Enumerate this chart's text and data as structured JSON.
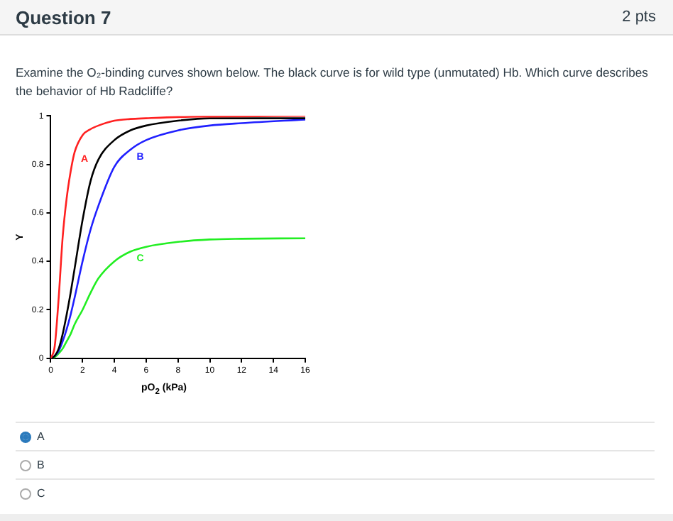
{
  "chart_data": {
    "type": "line",
    "title": "Question 7",
    "subtitle": "Examine the O₂-binding curves shown below.  The black curve is for wild type (unmutated) Hb.  Which curve describes the behavior of Hb Radcliffe?",
    "xlabel": "pO$_{2}$ (kPa)",
    "ylabel": "Y",
    "xlim": [
      0,
      16
    ],
    "xticks": [
      0,
      2,
      4,
      6,
      8,
      10,
      12,
      14,
      16
    ],
    "ylim": [
      0,
      1
    ],
    "yticks": [
      0,
      0.2,
      0.4,
      0.6,
      0.8,
      1
    ],
    "grid": false,
    "legend": false,
    "marker": "none",
    "line_style": "solid",
    "x": [
      0,
      0.25,
      0.5,
      0.75,
      1,
      1.25,
      1.5,
      2,
      2.5,
      3,
      4,
      5,
      6,
      8,
      10,
      12,
      16
    ],
    "series": [
      {
        "name": "A",
        "color": "#ff2020",
        "values": [
          0,
          0.05,
          0.25,
          0.5,
          0.66,
          0.77,
          0.85,
          0.92,
          0.945,
          0.96,
          0.98,
          0.987,
          0.99,
          0.995,
          0.997,
          0.998,
          1
        ]
      },
      {
        "color": "#000000",
        "values": [
          0,
          0.01,
          0.04,
          0.1,
          0.18,
          0.27,
          0.37,
          0.57,
          0.73,
          0.82,
          0.9,
          0.94,
          0.96,
          0.98,
          0.99,
          0.99,
          0.99
        ]
      },
      {
        "name": "B",
        "color": "#2020ff",
        "values": [
          0,
          0.01,
          0.03,
          0.07,
          0.12,
          0.18,
          0.25,
          0.4,
          0.53,
          0.63,
          0.79,
          0.86,
          0.9,
          0.94,
          0.96,
          0.97,
          0.985
        ]
      },
      {
        "name": "C",
        "color": "#22ee22",
        "values": [
          0,
          0.005,
          0.02,
          0.04,
          0.07,
          0.1,
          0.14,
          0.2,
          0.27,
          0.33,
          0.4,
          0.44,
          0.46,
          0.48,
          0.49,
          0.493,
          0.495
        ]
      }
    ],
    "annotations": [
      "2 pts",
      "A",
      "B",
      "C"
    ]
  }
}
